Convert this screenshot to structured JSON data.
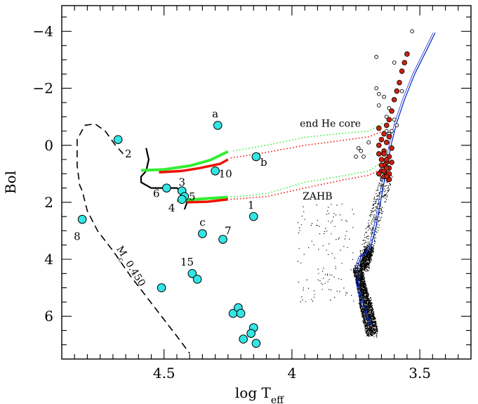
{
  "chart_data": {
    "type": "scatter",
    "title": "",
    "xlabel": "log T",
    "xlabel_sub": "eff",
    "ylabel": "Bol",
    "xlim": [
      4.9,
      3.3
    ],
    "ylim": [
      7.5,
      -4.9
    ],
    "x_ticks": [
      4.5,
      4,
      3.5
    ],
    "x_tick_labels": [
      "4.5",
      "4",
      "3.5"
    ],
    "y_ticks": [
      -4,
      -2,
      0,
      2,
      4,
      6
    ],
    "y_tick_labels": [
      "−4",
      "−2",
      "0",
      "2",
      "4",
      "6"
    ],
    "grid": false,
    "colors": {
      "cyan_star": "#33e6e6",
      "red_star": "#cc2211",
      "green_track": "#33ee33",
      "red_track": "#ee1100",
      "isochrone": "#1133cc",
      "dashed_track": "#000000"
    },
    "annotations": [
      {
        "text": "end He core",
        "x": 3.85,
        "y": -0.65
      },
      {
        "text": "ZAHB",
        "x": 3.9,
        "y": 1.9
      },
      {
        "text": "M",
        "sub": "c",
        "rest": " 0.450",
        "x": 4.64,
        "y": 4.3,
        "rotate": 58
      }
    ],
    "hot_stars": [
      {
        "x": 4.68,
        "y": -0.2,
        "label": "2",
        "lx": 4.64,
        "ly": 0.3
      },
      {
        "x": 4.82,
        "y": 2.6,
        "label": "8",
        "lx": 4.84,
        "ly": 3.2
      },
      {
        "x": 4.29,
        "y": -0.7,
        "label": "a",
        "lx": 4.3,
        "ly": -1.1
      },
      {
        "x": 4.14,
        "y": 0.4,
        "label": "b",
        "lx": 4.11,
        "ly": 0.6
      },
      {
        "x": 4.3,
        "y": 0.9,
        "label": "10",
        "lx": 4.26,
        "ly": 1.0
      },
      {
        "x": 4.43,
        "y": 1.6,
        "label": "3",
        "lx": 4.43,
        "ly": 1.3
      },
      {
        "x": 4.49,
        "y": 1.5,
        "label": "6",
        "lx": 4.53,
        "ly": 1.7
      },
      {
        "x": 4.42,
        "y": 1.8,
        "label": "5",
        "lx": 4.39,
        "ly": 1.8
      },
      {
        "x": 4.43,
        "y": 1.9,
        "label": "4",
        "lx": 4.47,
        "ly": 2.2
      },
      {
        "x": 4.15,
        "y": 2.5,
        "label": "1",
        "lx": 4.16,
        "ly": 2.1
      },
      {
        "x": 4.35,
        "y": 3.1,
        "label": "c",
        "lx": 4.35,
        "ly": 2.7
      },
      {
        "x": 4.27,
        "y": 3.3,
        "label": "7",
        "lx": 4.25,
        "ly": 3.0
      },
      {
        "x": 4.39,
        "y": 4.5,
        "label": "15",
        "lx": 4.41,
        "ly": 4.1
      },
      {
        "x": 4.37,
        "y": 4.7,
        "label": "",
        "lx": 0,
        "ly": 0
      },
      {
        "x": 4.51,
        "y": 5.0,
        "label": "",
        "lx": 0,
        "ly": 0
      },
      {
        "x": 4.23,
        "y": 5.9,
        "label": "",
        "lx": 0,
        "ly": 0
      },
      {
        "x": 4.21,
        "y": 5.7,
        "label": "",
        "lx": 0,
        "ly": 0
      },
      {
        "x": 4.2,
        "y": 5.9,
        "label": "",
        "lx": 0,
        "ly": 0
      },
      {
        "x": 4.15,
        "y": 6.4,
        "label": "",
        "lx": 0,
        "ly": 0
      },
      {
        "x": 4.16,
        "y": 6.6,
        "label": "",
        "lx": 0,
        "ly": 0
      },
      {
        "x": 4.19,
        "y": 6.8,
        "label": "",
        "lx": 0,
        "ly": 0
      },
      {
        "x": 4.14,
        "y": 6.95,
        "label": "",
        "lx": 0,
        "ly": 0
      }
    ],
    "red_giants": [
      {
        "x": 3.55,
        "y": -3.2
      },
      {
        "x": 3.56,
        "y": -2.9
      },
      {
        "x": 3.57,
        "y": -2.6
      },
      {
        "x": 3.58,
        "y": -2.2
      },
      {
        "x": 3.59,
        "y": -1.9
      },
      {
        "x": 3.6,
        "y": -1.6
      },
      {
        "x": 3.61,
        "y": -1.2
      },
      {
        "x": 3.62,
        "y": -0.9
      },
      {
        "x": 3.63,
        "y": -0.7
      },
      {
        "x": 3.66,
        "y": -0.6
      },
      {
        "x": 3.64,
        "y": -0.4
      },
      {
        "x": 3.62,
        "y": -0.3
      },
      {
        "x": 3.65,
        "y": -0.2
      },
      {
        "x": 3.63,
        "y": -0.1
      },
      {
        "x": 3.66,
        "y": 0.0
      },
      {
        "x": 3.61,
        "y": 0.1
      },
      {
        "x": 3.64,
        "y": 0.2
      },
      {
        "x": 3.66,
        "y": 0.3
      },
      {
        "x": 3.62,
        "y": 0.4
      },
      {
        "x": 3.65,
        "y": 0.5
      },
      {
        "x": 3.63,
        "y": 0.6
      },
      {
        "x": 3.64,
        "y": 0.7
      },
      {
        "x": 3.62,
        "y": 0.8
      },
      {
        "x": 3.65,
        "y": 0.9
      },
      {
        "x": 3.63,
        "y": 1.0
      },
      {
        "x": 3.64,
        "y": 1.1
      },
      {
        "x": 3.62,
        "y": 1.2
      },
      {
        "x": 3.63,
        "y": 0.5
      },
      {
        "x": 3.64,
        "y": 0.9
      },
      {
        "x": 3.65,
        "y": 0.7
      },
      {
        "x": 3.62,
        "y": 1.0
      },
      {
        "x": 3.63,
        "y": 0.8
      },
      {
        "x": 3.66,
        "y": 1.0
      },
      {
        "x": 3.61,
        "y": 0.6
      },
      {
        "x": 3.64,
        "y": 0.3
      },
      {
        "x": 3.63,
        "y": 1.1
      }
    ],
    "agb_open": [
      {
        "x": 3.53,
        "y": -4.0
      },
      {
        "x": 3.67,
        "y": -3.1
      },
      {
        "x": 3.6,
        "y": -2.9
      },
      {
        "x": 3.67,
        "y": -2.0
      },
      {
        "x": 3.66,
        "y": -1.8
      },
      {
        "x": 3.64,
        "y": -1.7
      },
      {
        "x": 3.57,
        "y": -1.9
      },
      {
        "x": 3.66,
        "y": -1.4
      },
      {
        "x": 3.62,
        "y": -1.3
      },
      {
        "x": 3.63,
        "y": -1.0
      },
      {
        "x": 3.6,
        "y": -0.9
      },
      {
        "x": 3.61,
        "y": -0.5
      },
      {
        "x": 3.62,
        "y": -0.4
      },
      {
        "x": 3.63,
        "y": -0.5
      },
      {
        "x": 3.59,
        "y": -0.7
      },
      {
        "x": 3.7,
        "y": -0.1
      },
      {
        "x": 3.74,
        "y": 0.1
      },
      {
        "x": 3.73,
        "y": 0.2
      },
      {
        "x": 3.75,
        "y": 0.4
      },
      {
        "x": 3.72,
        "y": 0.4
      }
    ],
    "tracks": {
      "isochrone": [
        [
          3.44,
          -3.95
        ],
        [
          3.47,
          -3.4
        ],
        [
          3.52,
          -2.5
        ],
        [
          3.56,
          -1.6
        ],
        [
          3.59,
          -0.8
        ],
        [
          3.61,
          -0.1
        ],
        [
          3.63,
          0.8
        ],
        [
          3.65,
          1.8
        ],
        [
          3.67,
          2.8
        ],
        [
          3.69,
          3.5
        ],
        [
          3.71,
          3.8
        ],
        [
          3.73,
          3.9
        ],
        [
          3.745,
          4.3
        ],
        [
          3.74,
          4.9
        ],
        [
          3.73,
          5.3
        ],
        [
          3.72,
          5.6
        ],
        [
          3.71,
          5.8
        ],
        [
          3.7,
          6.1
        ],
        [
          3.69,
          6.3
        ]
      ],
      "green_end_core_solid": [
        [
          4.59,
          0.88
        ],
        [
          4.5,
          0.85
        ],
        [
          4.4,
          0.72
        ],
        [
          4.32,
          0.52
        ],
        [
          4.25,
          0.22
        ]
      ],
      "red_end_core_solid": [
        [
          4.52,
          0.95
        ],
        [
          4.43,
          0.9
        ],
        [
          4.36,
          0.8
        ],
        [
          4.28,
          0.65
        ],
        [
          4.25,
          0.5
        ]
      ],
      "green_end_core_dotted": [
        [
          4.23,
          0.2
        ],
        [
          4.1,
          0.0
        ],
        [
          3.95,
          -0.28
        ],
        [
          3.82,
          -0.4
        ],
        [
          3.7,
          -0.5
        ],
        [
          3.64,
          -0.8
        ]
      ],
      "red_end_core_dotted": [
        [
          4.24,
          0.45
        ],
        [
          4.1,
          0.25
        ],
        [
          3.95,
          0.0
        ],
        [
          3.82,
          -0.15
        ],
        [
          3.7,
          -0.3
        ],
        [
          3.64,
          -0.5
        ]
      ],
      "green_zahb_solid": [
        [
          4.45,
          1.95
        ],
        [
          4.38,
          1.9
        ],
        [
          4.3,
          1.85
        ],
        [
          4.25,
          1.82
        ]
      ],
      "red_zahb_solid": [
        [
          4.41,
          2.0
        ],
        [
          4.33,
          1.98
        ],
        [
          4.25,
          1.9
        ]
      ],
      "green_zahb_dotted": [
        [
          4.24,
          1.82
        ],
        [
          4.1,
          1.7
        ],
        [
          3.95,
          1.3
        ],
        [
          3.82,
          1.1
        ],
        [
          3.7,
          0.9
        ],
        [
          3.64,
          0.55
        ]
      ],
      "red_zahb_dotted": [
        [
          4.24,
          1.9
        ],
        [
          4.1,
          1.8
        ],
        [
          3.95,
          1.5
        ],
        [
          3.82,
          1.25
        ],
        [
          3.7,
          1.05
        ],
        [
          3.64,
          0.8
        ]
      ],
      "black_track": [
        [
          4.57,
          0.1
        ],
        [
          4.56,
          0.5
        ],
        [
          4.57,
          0.9
        ],
        [
          4.59,
          1.1
        ],
        [
          4.59,
          1.3
        ],
        [
          4.55,
          1.5
        ],
        [
          4.5,
          1.5
        ],
        [
          4.45,
          1.5
        ],
        [
          4.42,
          1.7
        ],
        [
          4.41,
          2.0
        ],
        [
          4.42,
          2.25
        ]
      ],
      "dashed_mc": [
        [
          4.66,
          0.3
        ],
        [
          4.69,
          0.0
        ],
        [
          4.73,
          -0.5
        ],
        [
          4.77,
          -0.75
        ],
        [
          4.81,
          -0.7
        ],
        [
          4.84,
          -0.2
        ],
        [
          4.84,
          0.7
        ],
        [
          4.83,
          1.4
        ],
        [
          4.82,
          1.6
        ],
        [
          4.8,
          2.3
        ],
        [
          4.76,
          3.0
        ],
        [
          4.7,
          3.7
        ],
        [
          4.63,
          4.6
        ],
        [
          4.57,
          5.3
        ],
        [
          4.51,
          6.0
        ],
        [
          4.45,
          6.7
        ],
        [
          4.4,
          7.3
        ]
      ]
    }
  }
}
